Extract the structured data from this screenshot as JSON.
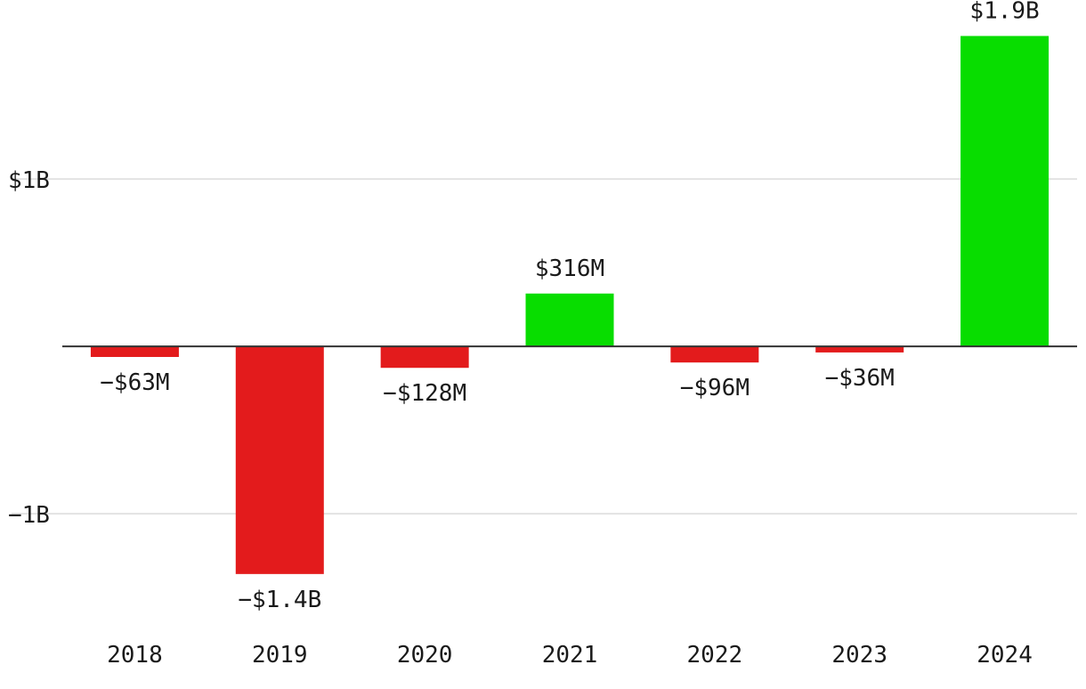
{
  "chart_data": {
    "type": "bar",
    "title": "",
    "xlabel": "",
    "ylabel": "",
    "categories": [
      "2018",
      "2019",
      "2020",
      "2021",
      "2022",
      "2023",
      "2024"
    ],
    "values": [
      -63000000,
      -1360000000,
      -128000000,
      316000000,
      -96000000,
      -36000000,
      1855000000
    ],
    "data_labels": [
      "−$63M",
      "−$1.4B",
      "−$128M",
      "$316M",
      "−$96M",
      "−$36M",
      "$1.9B"
    ],
    "y_ticks": [
      {
        "value": 1000000000,
        "label": "$1B"
      },
      {
        "value": -1000000000,
        "label": "−1B"
      }
    ],
    "ylim": [
      -1680000000,
      2070000000
    ],
    "grid": true,
    "legend": "none",
    "colors": {
      "positive": "#08dd00",
      "negative": "#e31b1c",
      "gridline": "#e3e3e3",
      "zero_line": "#333333"
    }
  }
}
